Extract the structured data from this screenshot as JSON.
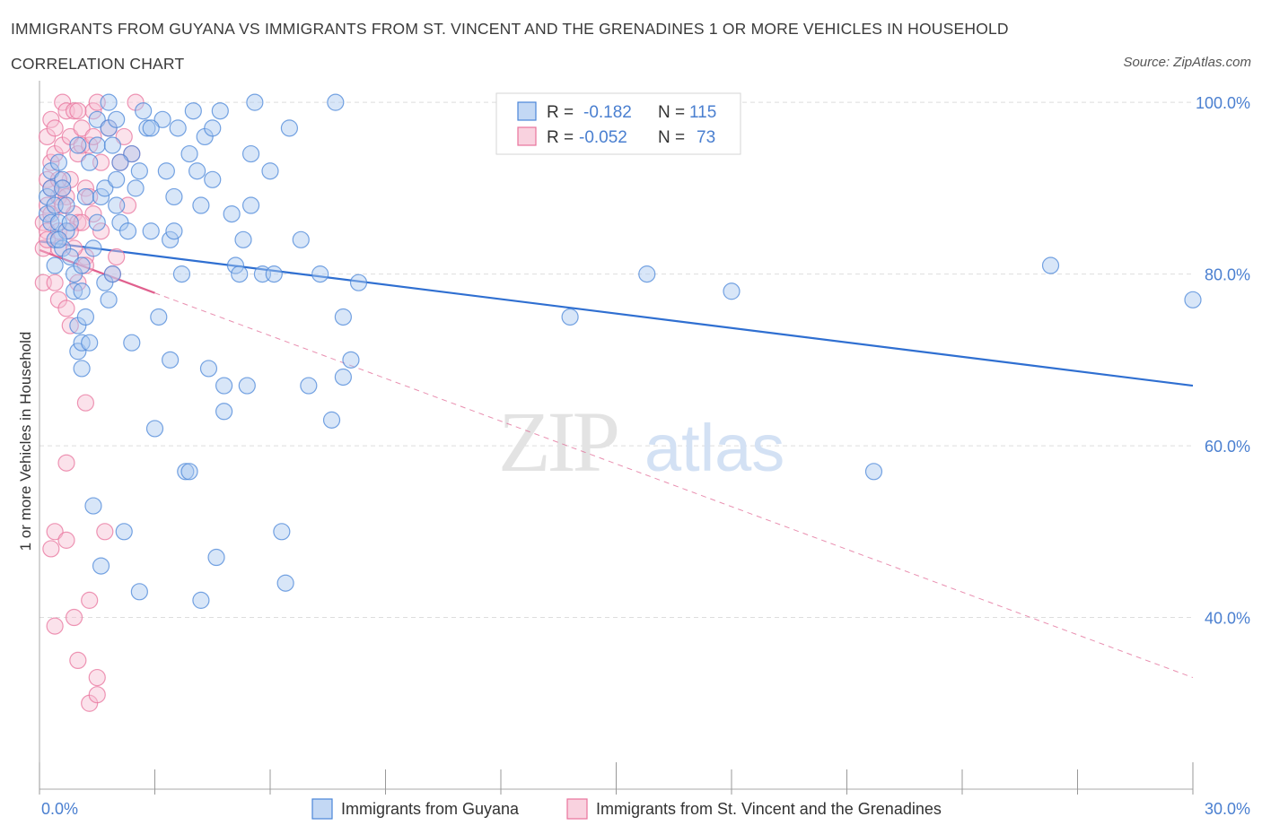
{
  "header": {
    "title": "IMMIGRANTS FROM GUYANA VS IMMIGRANTS FROM ST. VINCENT AND THE GRENADINES 1 OR MORE VEHICLES IN HOUSEHOLD",
    "subtitle": "CORRELATION CHART",
    "source": "Source: ZipAtlas.com"
  },
  "watermark": {
    "zip": "ZIP",
    "atlas": "atlas"
  },
  "colors": {
    "blue": "#4a86d8",
    "blue_fill": "#a9c7f0",
    "blue_line": "#2f6fd1",
    "pink": "#e8739c",
    "pink_fill": "#f6bfd2",
    "pink_line": "#e0608e",
    "axis_text": "#4a7fd0",
    "grid": "#dddddd"
  },
  "stats_box": {
    "rows": [
      {
        "r_label": "R = ",
        "r_value": "-0.182",
        "n_label": "N = ",
        "n_value": "115"
      },
      {
        "r_label": "R = ",
        "r_value": "-0.052",
        "n_label": "N = ",
        "n_value": "73"
      }
    ]
  },
  "chart_data": {
    "type": "scatter",
    "xlabel": "",
    "ylabel": "1 or more Vehicles in Household",
    "xlim": [
      0,
      30
    ],
    "ylim": [
      20,
      102
    ],
    "x_tick_labels": [
      "0.0%",
      "30.0%"
    ],
    "y_ticks": [
      40,
      60,
      80,
      100
    ],
    "y_tick_labels": [
      "40.0%",
      "60.0%",
      "80.0%",
      "100.0%"
    ],
    "grid": "horizontal dashed",
    "legend_position": "bottom-center",
    "series": [
      {
        "name": "Immigrants from Guyana",
        "color": "blue",
        "trend": {
          "x": [
            0,
            30
          ],
          "y": [
            83.8,
            67.0
          ]
        },
        "points": [
          [
            0.2,
            87
          ],
          [
            0.2,
            89
          ],
          [
            0.3,
            86
          ],
          [
            0.3,
            90
          ],
          [
            0.3,
            92
          ],
          [
            0.4,
            84
          ],
          [
            0.4,
            88
          ],
          [
            0.5,
            86
          ],
          [
            0.5,
            93
          ],
          [
            0.6,
            83
          ],
          [
            0.6,
            91
          ],
          [
            0.7,
            85
          ],
          [
            0.7,
            88
          ],
          [
            0.8,
            82
          ],
          [
            0.9,
            78
          ],
          [
            0.9,
            80
          ],
          [
            1.0,
            71
          ],
          [
            1.0,
            74
          ],
          [
            1.1,
            69
          ],
          [
            1.1,
            72
          ],
          [
            1.1,
            78
          ],
          [
            1.2,
            75
          ],
          [
            1.2,
            89
          ],
          [
            1.3,
            72
          ],
          [
            1.4,
            53
          ],
          [
            1.4,
            83
          ],
          [
            1.5,
            95
          ],
          [
            1.5,
            98
          ],
          [
            1.6,
            46
          ],
          [
            1.6,
            89
          ],
          [
            1.7,
            90
          ],
          [
            1.7,
            79
          ],
          [
            1.8,
            97
          ],
          [
            1.8,
            100
          ],
          [
            1.9,
            95
          ],
          [
            1.9,
            80
          ],
          [
            2.0,
            91
          ],
          [
            2.0,
            88
          ],
          [
            2.1,
            86
          ],
          [
            2.2,
            50
          ],
          [
            2.3,
            85
          ],
          [
            2.4,
            94
          ],
          [
            2.4,
            72
          ],
          [
            2.5,
            90
          ],
          [
            2.6,
            43
          ],
          [
            2.7,
            99
          ],
          [
            2.8,
            97
          ],
          [
            2.9,
            85
          ],
          [
            3.0,
            62
          ],
          [
            3.1,
            75
          ],
          [
            3.2,
            98
          ],
          [
            3.3,
            92
          ],
          [
            3.4,
            70
          ],
          [
            3.4,
            84
          ],
          [
            3.5,
            89
          ],
          [
            3.6,
            97
          ],
          [
            3.7,
            80
          ],
          [
            3.8,
            57
          ],
          [
            3.9,
            94
          ],
          [
            4.0,
            99
          ],
          [
            4.1,
            92
          ],
          [
            4.2,
            42
          ],
          [
            4.3,
            96
          ],
          [
            4.4,
            69
          ],
          [
            4.5,
            91
          ],
          [
            4.6,
            47
          ],
          [
            4.7,
            99
          ],
          [
            4.8,
            64
          ],
          [
            4.8,
            67
          ],
          [
            5.0,
            87
          ],
          [
            5.1,
            81
          ],
          [
            5.2,
            80
          ],
          [
            5.3,
            84
          ],
          [
            5.4,
            67
          ],
          [
            5.5,
            94
          ],
          [
            5.6,
            100
          ],
          [
            5.8,
            80
          ],
          [
            6.0,
            92
          ],
          [
            6.1,
            80
          ],
          [
            6.3,
            50
          ],
          [
            6.4,
            44
          ],
          [
            6.5,
            97
          ],
          [
            6.8,
            84
          ],
          [
            7.0,
            67
          ],
          [
            7.3,
            80
          ],
          [
            7.6,
            63
          ],
          [
            7.7,
            100
          ],
          [
            7.9,
            75
          ],
          [
            7.9,
            68
          ],
          [
            8.1,
            70
          ],
          [
            8.3,
            79
          ],
          [
            13.8,
            75
          ],
          [
            15.8,
            80
          ],
          [
            18.0,
            78
          ],
          [
            21.7,
            57
          ],
          [
            26.3,
            81
          ],
          [
            30.0,
            77
          ],
          [
            1.1,
            81
          ],
          [
            2.6,
            92
          ],
          [
            3.9,
            57
          ],
          [
            0.5,
            84
          ],
          [
            1.3,
            93
          ],
          [
            2.0,
            98
          ],
          [
            0.8,
            86
          ],
          [
            1.0,
            95
          ],
          [
            2.9,
            97
          ],
          [
            4.5,
            97
          ],
          [
            0.4,
            81
          ],
          [
            1.5,
            86
          ],
          [
            3.5,
            85
          ],
          [
            4.2,
            88
          ],
          [
            5.5,
            88
          ],
          [
            2.1,
            93
          ],
          [
            0.6,
            90
          ],
          [
            1.8,
            77
          ]
        ]
      },
      {
        "name": "Immigrants from St. Vincent and the Grenadines",
        "color": "pink",
        "trend": {
          "x": [
            0,
            3
          ],
          "y": [
            82.8,
            77.8
          ]
        },
        "trend_extended": {
          "x": [
            3,
            30
          ],
          "y": [
            77.8,
            33.0
          ]
        },
        "points": [
          [
            0.1,
            86
          ],
          [
            0.1,
            79
          ],
          [
            0.1,
            83
          ],
          [
            0.2,
            88
          ],
          [
            0.2,
            85
          ],
          [
            0.2,
            91
          ],
          [
            0.2,
            96
          ],
          [
            0.3,
            48
          ],
          [
            0.3,
            87
          ],
          [
            0.3,
            98
          ],
          [
            0.3,
            93
          ],
          [
            0.4,
            50
          ],
          [
            0.4,
            94
          ],
          [
            0.4,
            97
          ],
          [
            0.4,
            39
          ],
          [
            0.5,
            89
          ],
          [
            0.5,
            77
          ],
          [
            0.5,
            85
          ],
          [
            0.6,
            90
          ],
          [
            0.6,
            95
          ],
          [
            0.6,
            100
          ],
          [
            0.7,
            99
          ],
          [
            0.7,
            49
          ],
          [
            0.7,
            58
          ],
          [
            0.7,
            89
          ],
          [
            0.8,
            96
          ],
          [
            0.8,
            74
          ],
          [
            0.8,
            91
          ],
          [
            0.9,
            87
          ],
          [
            0.9,
            99
          ],
          [
            0.9,
            40
          ],
          [
            1.0,
            86
          ],
          [
            1.0,
            94
          ],
          [
            1.0,
            79
          ],
          [
            1.0,
            35
          ],
          [
            1.1,
            95
          ],
          [
            1.1,
            97
          ],
          [
            1.2,
            90
          ],
          [
            1.2,
            82
          ],
          [
            1.2,
            81
          ],
          [
            1.3,
            42
          ],
          [
            1.3,
            30
          ],
          [
            1.3,
            95
          ],
          [
            1.3,
            89
          ],
          [
            1.4,
            87
          ],
          [
            1.4,
            99
          ],
          [
            1.5,
            100
          ],
          [
            1.5,
            31
          ],
          [
            1.5,
            33
          ],
          [
            1.6,
            85
          ],
          [
            1.7,
            50
          ],
          [
            1.8,
            97
          ],
          [
            1.9,
            80
          ],
          [
            2.0,
            82
          ],
          [
            2.1,
            93
          ],
          [
            2.2,
            96
          ],
          [
            2.4,
            94
          ],
          [
            2.5,
            100
          ],
          [
            1.2,
            65
          ],
          [
            0.5,
            83
          ],
          [
            0.9,
            83
          ],
          [
            1.1,
            86
          ],
          [
            0.3,
            90
          ],
          [
            0.6,
            88
          ],
          [
            0.2,
            84
          ],
          [
            0.7,
            76
          ],
          [
            1.4,
            96
          ],
          [
            0.4,
            79
          ],
          [
            1.0,
            99
          ],
          [
            0.8,
            85
          ],
          [
            2.3,
            88
          ],
          [
            1.6,
            93
          ],
          [
            0.5,
            91
          ]
        ]
      }
    ]
  }
}
